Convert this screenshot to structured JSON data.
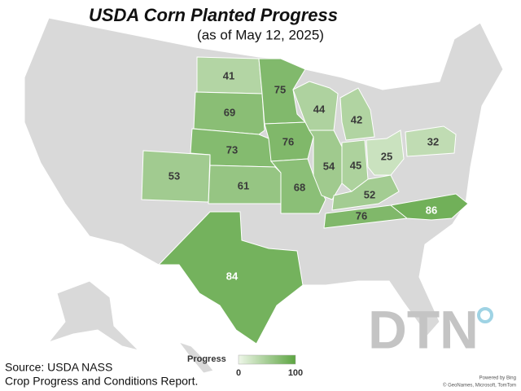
{
  "title": "USDA Corn Planted Progress",
  "subtitle": "(as of May 12, 2025)",
  "states": [
    {
      "value": 41
    },
    {
      "value": 69
    },
    {
      "value": 73
    },
    {
      "value": 61
    },
    {
      "value": 75
    },
    {
      "value": 76
    },
    {
      "value": 68
    },
    {
      "value": 44
    },
    {
      "value": 54
    },
    {
      "value": 45
    },
    {
      "value": 42
    },
    {
      "value": 25
    },
    {
      "value": 32
    },
    {
      "value": 52
    },
    {
      "value": 76
    },
    {
      "value": 86
    },
    {
      "value": 53
    },
    {
      "value": 84
    }
  ],
  "legend": {
    "title": "Progress",
    "min": 0,
    "max": 100,
    "colors": [
      "#eef6e8",
      "#5da542"
    ]
  },
  "source": [
    "Source: USDA NASS",
    "Crop Progress and Conditions Report."
  ],
  "credits": [
    "Powered by Bing",
    "© GeoNames, Microsoft, TomTom"
  ],
  "logo": "DTN"
}
